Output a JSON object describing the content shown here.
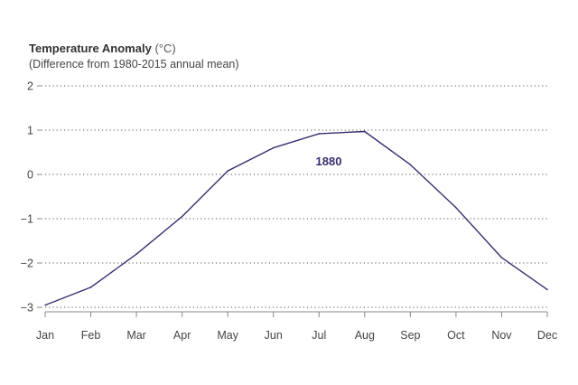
{
  "chart_data": {
    "type": "line",
    "title": "Temperature Anomaly",
    "title_unit": "(°C)",
    "subtitle": "(Difference from 1980-2015 annual mean)",
    "categories": [
      "Jan",
      "Feb",
      "Mar",
      "Apr",
      "May",
      "Jun",
      "Jul",
      "Aug",
      "Sep",
      "Oct",
      "Nov",
      "Dec"
    ],
    "series": [
      {
        "name": "1880",
        "values": [
          -2.95,
          -2.55,
          -1.8,
          -0.95,
          0.08,
          0.6,
          0.92,
          0.97,
          0.22,
          -0.75,
          -1.88,
          -2.6
        ],
        "color": "#3b2d6e"
      }
    ],
    "yticks": [
      "2",
      "1",
      "0",
      "−1",
      "−2",
      "−3"
    ],
    "ylim": [
      -3,
      2
    ],
    "grid": true
  }
}
